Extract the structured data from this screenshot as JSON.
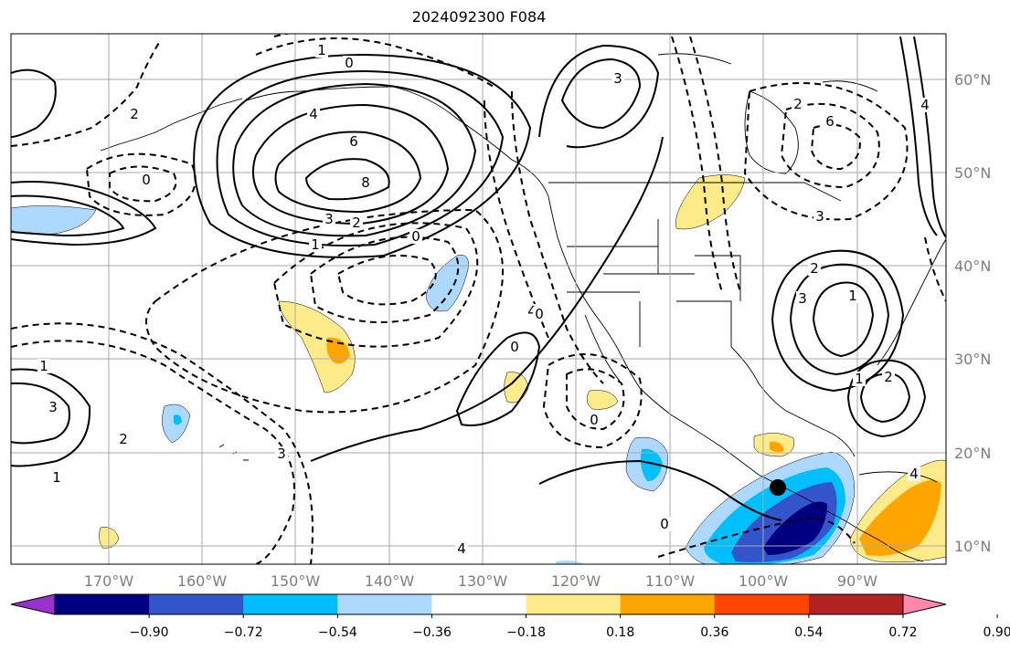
{
  "title": "2024092300 F084",
  "map": {
    "lon_labels": [
      "170°W",
      "160°W",
      "150°W",
      "140°W",
      "130°W",
      "120°W",
      "110°W",
      "100°W",
      "90°W"
    ],
    "lat_labels": [
      "60°N",
      "50°N",
      "40°N",
      "30°N",
      "20°N",
      "10°N"
    ],
    "gridline_color": "#a9a9a9",
    "storm_marker": "black-dot"
  },
  "contour_labels": {
    "solid": [
      "4",
      "6",
      "8",
      "3",
      "2",
      "1",
      "0",
      "4",
      "3",
      "2",
      "1",
      "3",
      "2",
      "1",
      "4",
      "3",
      "1",
      "0"
    ],
    "dashed": [
      "1",
      "0",
      "2",
      "0",
      "1",
      "2",
      "3",
      "4",
      "0",
      "0",
      "0",
      "2",
      "3",
      "6",
      "4"
    ]
  },
  "colorbar": {
    "ticks": [
      "−0.90",
      "−0.72",
      "−0.54",
      "−0.36",
      "−0.18",
      "0.18",
      "0.36",
      "0.54",
      "0.72",
      "0.90"
    ],
    "colors": [
      "#9932cc",
      "#000080",
      "#3355cc",
      "#00bfff",
      "#add8ff",
      "#ffffff",
      "#ffeb8a",
      "#ffa500",
      "#ff4500",
      "#b22222",
      "#ff88aa"
    ]
  }
}
